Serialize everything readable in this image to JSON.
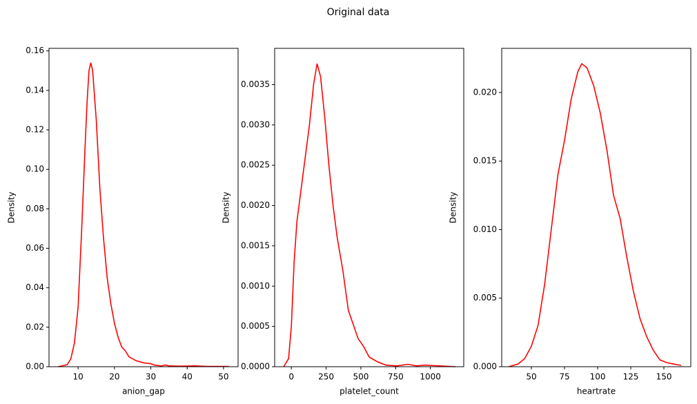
{
  "title": "Original data",
  "chart_data": [
    {
      "type": "line",
      "xlabel": "anion_gap",
      "ylabel": "Density",
      "color": "red",
      "xlim": [
        2.0,
        54.0
      ],
      "ylim": [
        0,
        0.1613
      ],
      "xticks": [
        10,
        20,
        30,
        40,
        50
      ],
      "yticks": [
        {
          "value": 0,
          "label": "0.00"
        },
        {
          "value": 0.02,
          "label": "0.02"
        },
        {
          "value": 0.04,
          "label": "0.04"
        },
        {
          "value": 0.06,
          "label": "0.06"
        },
        {
          "value": 0.08,
          "label": "0.08"
        },
        {
          "value": 0.1,
          "label": "0.10"
        },
        {
          "value": 0.12,
          "label": "0.12"
        },
        {
          "value": 0.14,
          "label": "0.14"
        },
        {
          "value": 0.16,
          "label": "0.16"
        }
      ],
      "x": [
        4.5,
        7,
        8,
        9,
        10,
        11,
        12,
        12.5,
        13,
        13.5,
        14,
        15,
        16,
        17,
        18,
        19,
        20,
        21,
        22,
        23,
        24,
        26,
        28,
        30,
        31,
        33,
        34,
        35,
        38,
        42,
        45,
        51.5
      ],
      "values": [
        0,
        0.001,
        0.004,
        0.012,
        0.03,
        0.07,
        0.115,
        0.135,
        0.15,
        0.154,
        0.15,
        0.125,
        0.09,
        0.065,
        0.045,
        0.032,
        0.022,
        0.015,
        0.01,
        0.008,
        0.005,
        0.003,
        0.002,
        0.0015,
        0.0008,
        0.0004,
        0.0009,
        0.0004,
        0.0003,
        0.0004,
        0.0002,
        0.0001
      ]
    },
    {
      "type": "line",
      "xlabel": "platelet_count",
      "ylabel": "Density",
      "color": "red",
      "xlim": [
        -120,
        1240
      ],
      "ylim": [
        0,
        0.00395
      ],
      "xticks": [
        0,
        250,
        500,
        750,
        1000
      ],
      "yticks": [
        {
          "value": 0,
          "label": "0.0000"
        },
        {
          "value": 0.0005,
          "label": "0.0005"
        },
        {
          "value": 0.001,
          "label": "0.0010"
        },
        {
          "value": 0.0015,
          "label": "0.0015"
        },
        {
          "value": 0.002,
          "label": "0.0020"
        },
        {
          "value": 0.0025,
          "label": "0.0025"
        },
        {
          "value": 0.003,
          "label": "0.0030"
        },
        {
          "value": 0.0035,
          "label": "0.0035"
        }
      ],
      "x": [
        -55,
        -20,
        0,
        20,
        40,
        70,
        100,
        130,
        160,
        185,
        210,
        240,
        270,
        300,
        330,
        370,
        410,
        450,
        480,
        520,
        560,
        620,
        680,
        760,
        840,
        900,
        960,
        1180
      ],
      "values": [
        0,
        0.0001,
        0.0005,
        0.0013,
        0.0018,
        0.0022,
        0.0026,
        0.003,
        0.0035,
        0.00376,
        0.0036,
        0.0031,
        0.0025,
        0.002,
        0.0016,
        0.0012,
        0.0007,
        0.0005,
        0.00035,
        0.00025,
        0.00012,
        6e-05,
        2e-05,
        1e-05,
        3e-05,
        1e-05,
        2e-05,
        0
      ]
    },
    {
      "type": "line",
      "xlabel": "heartrate",
      "ylabel": "Density",
      "color": "red",
      "xlim": [
        27.6,
        170.3
      ],
      "ylim": [
        0,
        0.02322
      ],
      "xticks": [
        50,
        75,
        100,
        125,
        150
      ],
      "yticks": [
        {
          "value": 0,
          "label": "0.000"
        },
        {
          "value": 0.005,
          "label": "0.005"
        },
        {
          "value": 0.01,
          "label": "0.010"
        },
        {
          "value": 0.015,
          "label": "0.015"
        },
        {
          "value": 0.02,
          "label": "0.020"
        }
      ],
      "x": [
        33,
        40,
        45,
        50,
        55,
        60,
        65,
        70,
        75,
        80,
        85,
        88,
        92,
        97,
        102,
        107,
        112,
        117,
        122,
        127,
        132,
        137,
        142,
        147,
        152,
        157,
        163
      ],
      "values": [
        0,
        0.0002,
        0.0006,
        0.0015,
        0.003,
        0.006,
        0.01,
        0.014,
        0.0165,
        0.0195,
        0.0215,
        0.0221,
        0.0218,
        0.0205,
        0.0185,
        0.0158,
        0.0125,
        0.0108,
        0.008,
        0.0055,
        0.0035,
        0.0022,
        0.0012,
        0.0005,
        0.0003,
        0.0002,
        0.0001
      ]
    }
  ]
}
